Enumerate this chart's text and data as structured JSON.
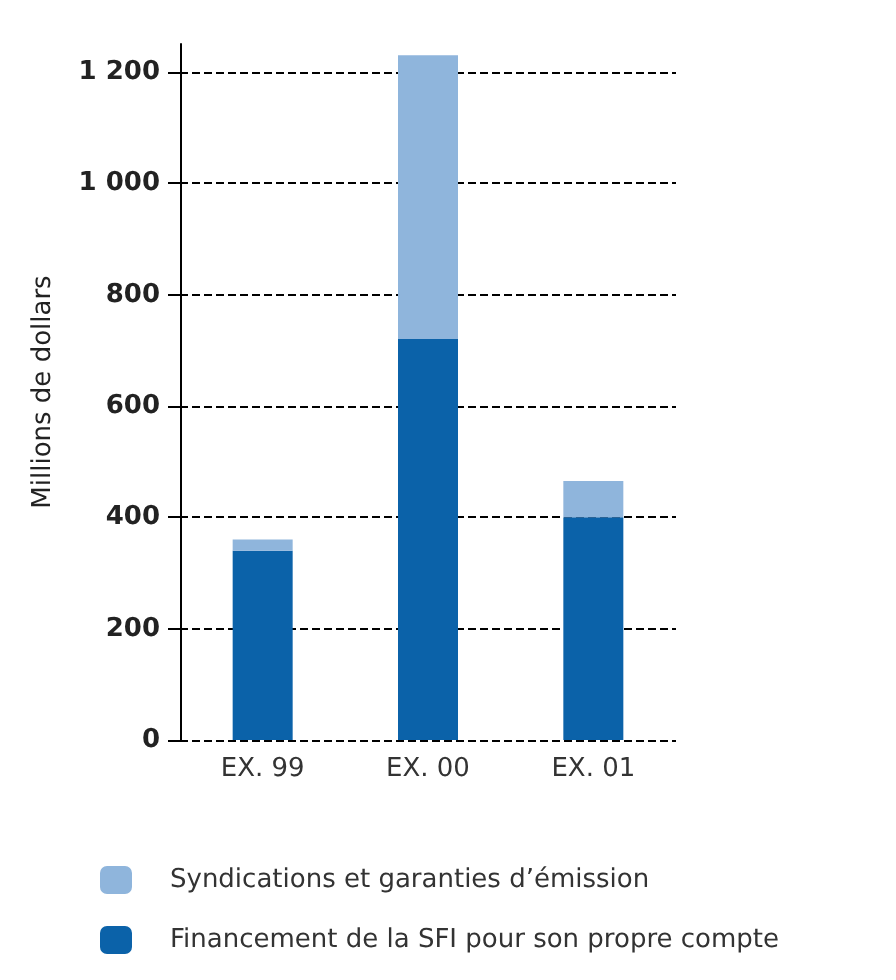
{
  "chart_data": {
    "type": "bar",
    "stacked": true,
    "ylabel": "Millions de dollars",
    "categories": [
      "EX. 99",
      "EX. 00",
      "EX. 01"
    ],
    "series": [
      {
        "name": "Financement de la SFI pour son propre compte",
        "color": "#0b62a9",
        "values": [
          340,
          720,
          400
        ]
      },
      {
        "name": "Syndications et garanties d’émission",
        "color": "#8fb5dc",
        "values": [
          20,
          510,
          65
        ]
      }
    ],
    "ylim": [
      0,
      1250
    ],
    "yticks": [
      0,
      200,
      400,
      600,
      800,
      {
        "value": 1000,
        "label": "1 000"
      },
      {
        "value": 1200,
        "label": "1 200"
      }
    ],
    "grid": "y",
    "legend": "bottom left"
  }
}
